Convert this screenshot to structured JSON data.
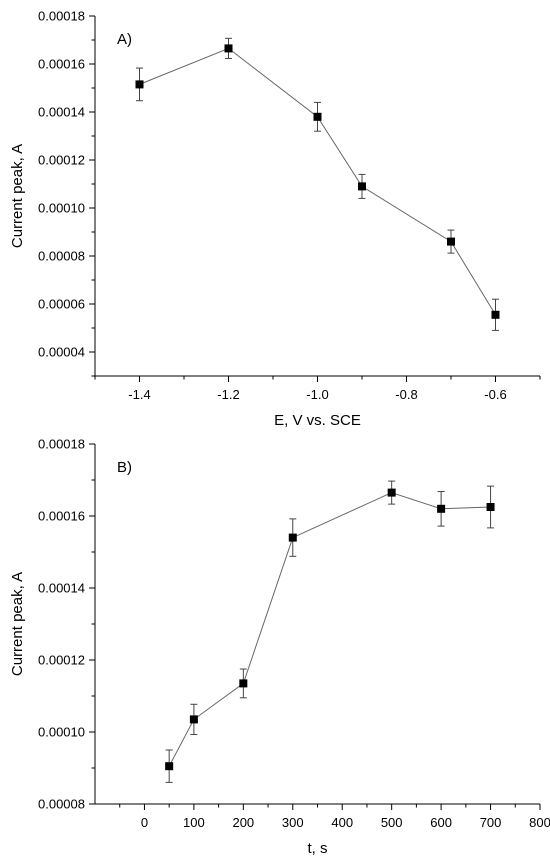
{
  "chart_data": [
    {
      "type": "scatter",
      "panel_label": "A)",
      "xlabel": "E, V vs. SCE",
      "ylabel": "Current peak, A",
      "xlim": [
        -1.5,
        -0.5
      ],
      "ylim": [
        3e-05,
        0.00018
      ],
      "xticks": [
        -1.4,
        -1.2,
        -1.0,
        -0.8,
        -0.6
      ],
      "xtick_labels": [
        "-1.4",
        "-1.2",
        "-1.0",
        "-0.8",
        "-0.6"
      ],
      "yticks": [
        4e-05,
        6e-05,
        8e-05,
        0.0001,
        0.00012,
        0.00014,
        0.00016,
        0.00018
      ],
      "ytick_labels": [
        "0.00004",
        "0.00006",
        "0.00008",
        "0.00010",
        "0.00012",
        "0.00014",
        "0.00016",
        "0.00018"
      ],
      "grid": false,
      "series": [
        {
          "x": [
            -1.4,
            -1.2,
            -1.0,
            -0.9,
            -0.7,
            -0.6
          ],
          "y": [
            0.0001515,
            0.0001665,
            0.000138,
            0.000109,
            8.6e-05,
            5.55e-05
          ],
          "err": [
            6.8e-06,
            4.2e-06,
            6e-06,
            5e-06,
            4.8e-06,
            6.5e-06
          ]
        }
      ]
    },
    {
      "type": "scatter",
      "panel_label": "B)",
      "xlabel": "t, s",
      "ylabel": "Current peak, A",
      "xlim": [
        -100,
        800
      ],
      "ylim": [
        8e-05,
        0.00018
      ],
      "xticks": [
        0,
        100,
        200,
        300,
        400,
        500,
        600,
        700,
        800
      ],
      "xtick_labels": [
        "0",
        "100",
        "200",
        "300",
        "400",
        "500",
        "600",
        "700",
        "800"
      ],
      "yticks": [
        8e-05,
        0.0001,
        0.00012,
        0.00014,
        0.00016,
        0.00018
      ],
      "ytick_labels": [
        "0.00008",
        "0.00010",
        "0.00012",
        "0.00014",
        "0.00016",
        "0.00018"
      ],
      "grid": false,
      "series": [
        {
          "x": [
            50,
            100,
            200,
            300,
            500,
            600,
            700
          ],
          "y": [
            9.05e-05,
            0.0001035,
            0.0001135,
            0.000154,
            0.0001665,
            0.000162,
            0.0001625
          ],
          "err": [
            4.5e-06,
            4.2e-06,
            4e-06,
            5.2e-06,
            3.2e-06,
            4.8e-06,
            5.8e-06
          ]
        }
      ]
    }
  ]
}
